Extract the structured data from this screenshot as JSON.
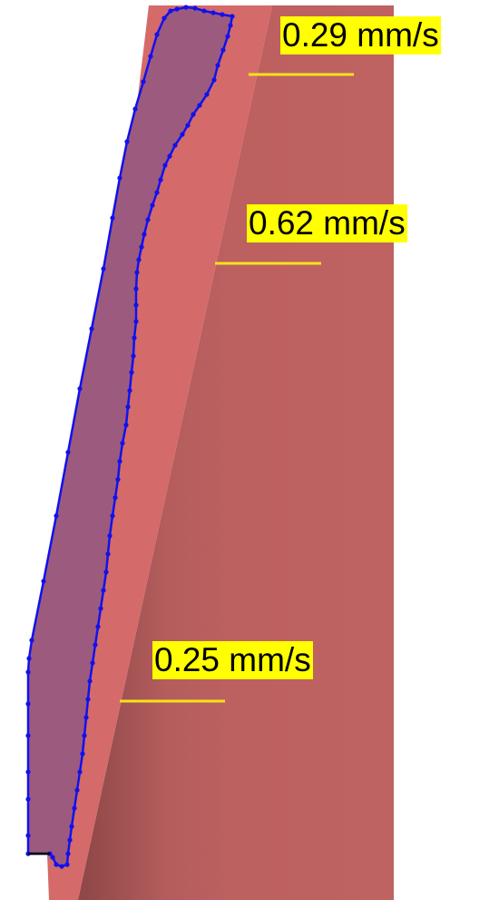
{
  "annotations": [
    {
      "id": "top",
      "text": "0.29 mm/s"
    },
    {
      "id": "middle",
      "text": "0.62 mm/s"
    },
    {
      "id": "bottom",
      "text": "0.25 mm/s"
    }
  ],
  "colors": {
    "background": "#ffffff",
    "face_light": "#d46a6a",
    "face_shadow_dark": "#8e4646",
    "face_shadow_mid": "#b65d5d",
    "face_main": "#bd6060",
    "region_fill": "#9c5a7e",
    "outline": "#1111ee",
    "marker_line": "#f5e31a",
    "label_background": "#ffff00",
    "label_text": "#000000"
  }
}
